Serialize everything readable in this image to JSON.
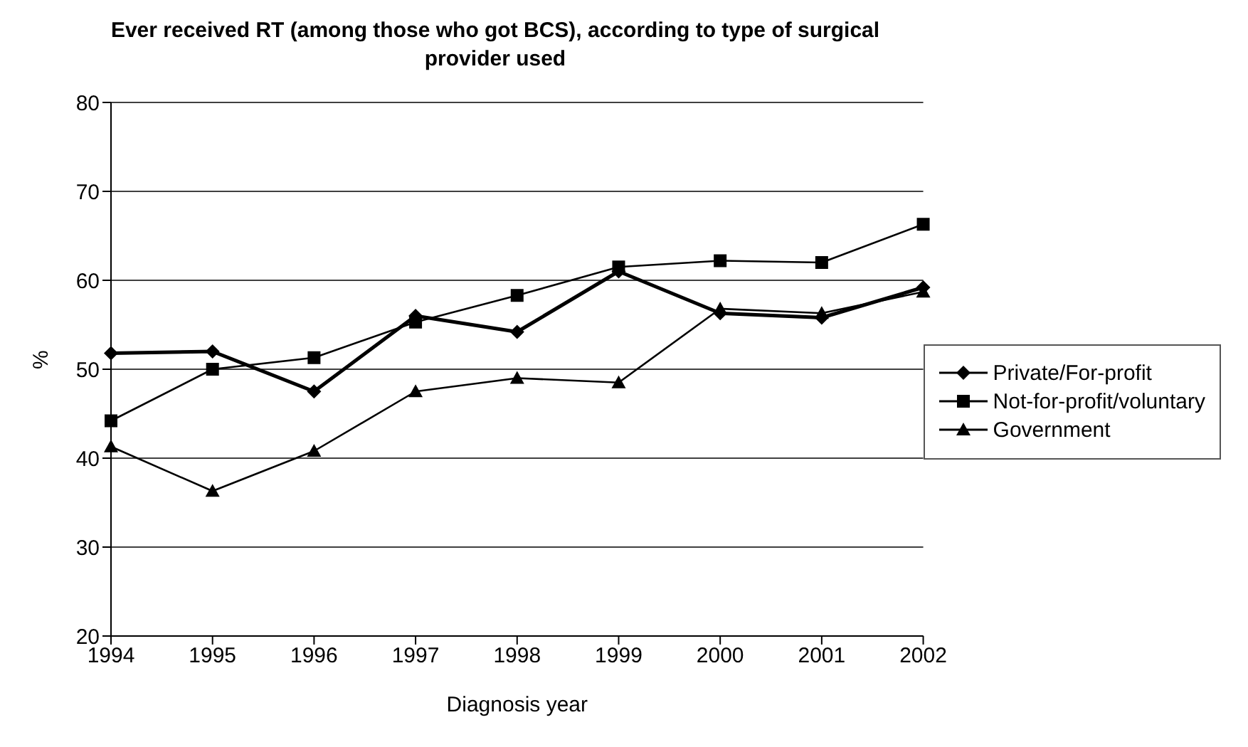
{
  "chart_data": {
    "type": "line",
    "title": "Ever received RT (among those who got BCS), according to type of surgical provider used",
    "xlabel": "Diagnosis year",
    "ylabel": "%",
    "categories": [
      "1994",
      "1995",
      "1996",
      "1997",
      "1998",
      "1999",
      "2000",
      "2001",
      "2002"
    ],
    "series": [
      {
        "name": "Private/For-profit",
        "color": "#000000",
        "marker": "diamond",
        "values": [
          51.8,
          52,
          47.5,
          56,
          54.2,
          61,
          56.3,
          55.8,
          59.2
        ]
      },
      {
        "name": "Not-for-profit/voluntary",
        "color": "#000000",
        "marker": "square",
        "values": [
          44.2,
          50,
          51.3,
          55.3,
          58.3,
          61.5,
          62.2,
          62,
          66.3
        ]
      },
      {
        "name": "Government",
        "color": "#000000",
        "marker": "triangle",
        "values": [
          41.3,
          36.3,
          40.8,
          47.5,
          49,
          48.5,
          56.8,
          56.3,
          58.7
        ]
      }
    ],
    "ylim": [
      20,
      80
    ],
    "yticks": [
      20,
      30,
      40,
      50,
      60,
      70,
      80
    ],
    "grid": "y",
    "legend": "right"
  }
}
